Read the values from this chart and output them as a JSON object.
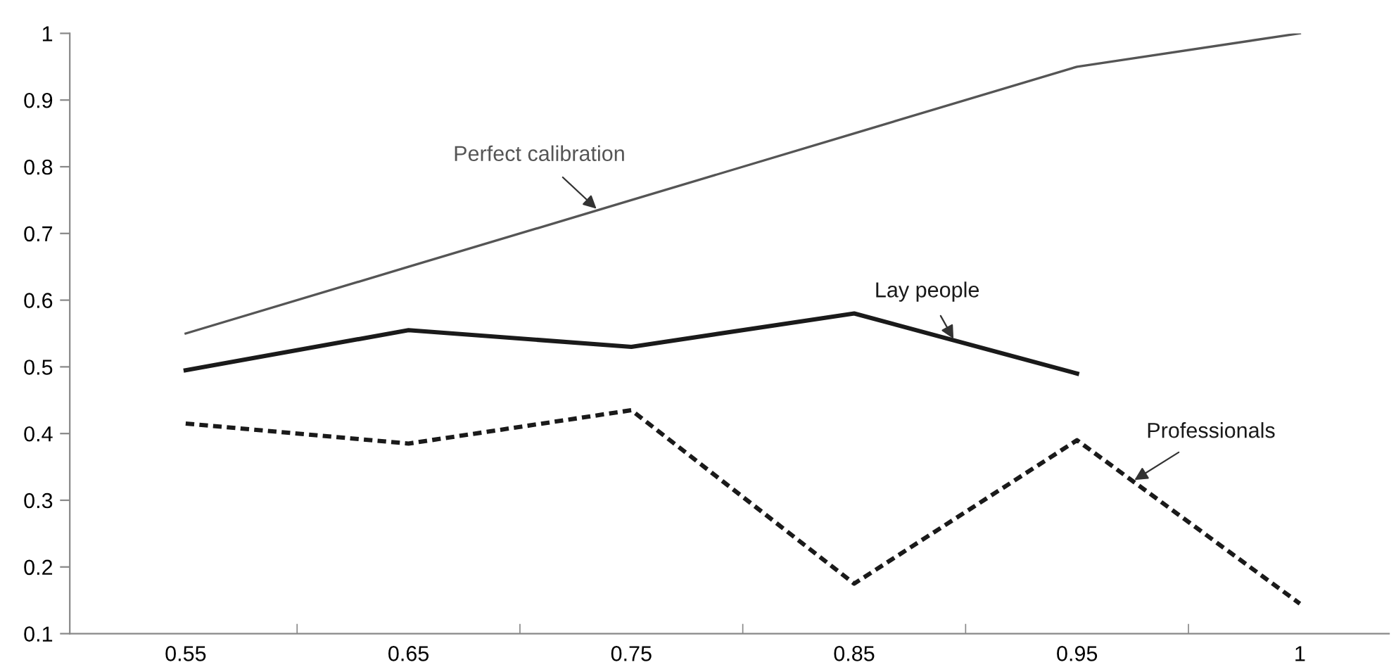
{
  "chart_data": {
    "type": "line",
    "categories": [
      "0.55",
      "0.65",
      "0.75",
      "0.85",
      "0.95",
      "1"
    ],
    "series": [
      {
        "name": "Perfect calibration",
        "color": "#555555",
        "line_style": "solid",
        "values": [
          0.55,
          0.65,
          0.75,
          0.85,
          0.95,
          1.0
        ]
      },
      {
        "name": "Lay people",
        "color": "#1a1a1a",
        "line_style": "solid",
        "values": [
          0.495,
          0.555,
          0.53,
          0.58,
          0.49,
          null
        ]
      },
      {
        "name": "Professionals",
        "color": "#1a1a1a",
        "line_style": "dotted",
        "values": [
          0.415,
          0.385,
          0.435,
          0.175,
          0.39,
          0.145
        ]
      }
    ],
    "ylim": [
      0.1,
      1.0
    ],
    "yticks": [
      {
        "value": 0.1,
        "label": "0.1"
      },
      {
        "value": 0.2,
        "label": "0.2"
      },
      {
        "value": 0.3,
        "label": "0.3"
      },
      {
        "value": 0.4,
        "label": "0.4"
      },
      {
        "value": 0.5,
        "label": "0.5"
      },
      {
        "value": 0.6,
        "label": "0.6"
      },
      {
        "value": 0.7,
        "label": "0.7"
      },
      {
        "value": 0.8,
        "label": "0.8"
      },
      {
        "value": 0.9,
        "label": "0.9"
      },
      {
        "value": 1.0,
        "label": "1"
      }
    ],
    "grid": false,
    "legend": false,
    "marker": "none"
  }
}
